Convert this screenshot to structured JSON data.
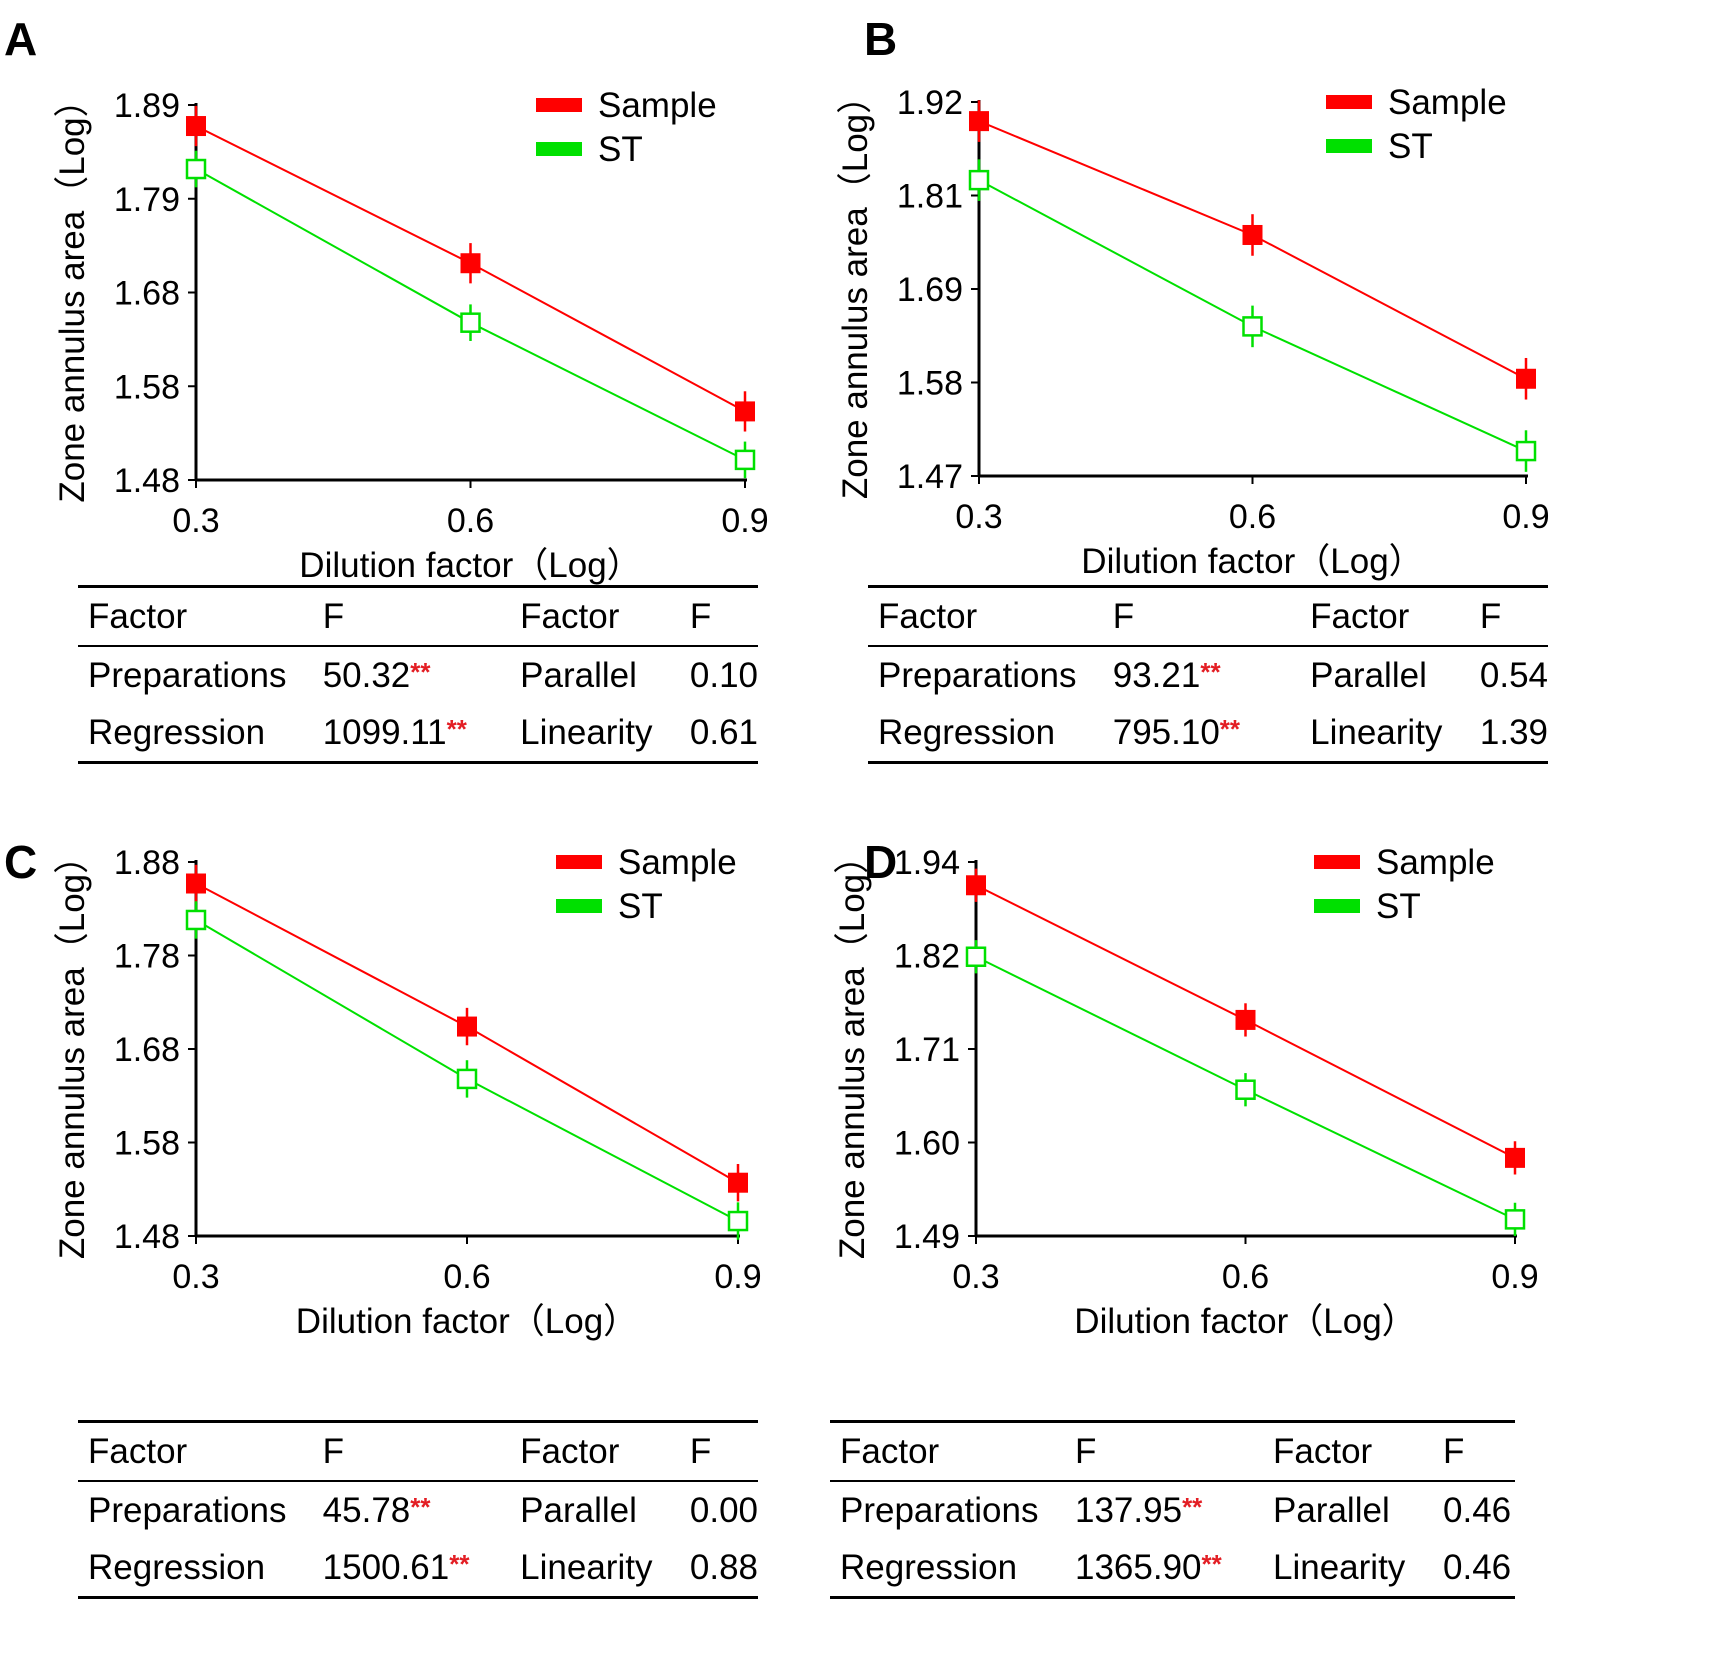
{
  "colors": {
    "sample": "#ff0000",
    "st": "#00e000",
    "sig": "#e31e24",
    "axis": "#000000"
  },
  "chart_data": [
    {
      "panel": "A",
      "type": "line",
      "xlabel": "Dilution factor（Log）",
      "ylabel": "Zone annulus area（Log）",
      "xticks": [
        "0.3",
        "0.6",
        "0.9"
      ],
      "yticks": [
        "1.89",
        "1.79",
        "1.68",
        "1.58",
        "1.48"
      ],
      "xlim": [
        0.3,
        0.9
      ],
      "ylim": [
        1.48,
        1.89
      ],
      "legend": "top-right",
      "x": [
        0.3,
        0.6,
        0.9
      ],
      "series": [
        {
          "name": "Sample",
          "values": [
            1.867,
            1.717,
            1.555
          ],
          "err": [
            0.022,
            0.022,
            0.022
          ]
        },
        {
          "name": "ST",
          "values": [
            1.82,
            1.652,
            1.502
          ],
          "err": [
            0.02,
            0.02,
            0.02
          ]
        }
      ],
      "stats": {
        "headers": [
          "Factor",
          "F",
          "Factor",
          "F"
        ],
        "rows": [
          {
            "f1": "Preparations",
            "v1": "50.32",
            "s1": "**",
            "f2": "Parallel",
            "v2": "0.10"
          },
          {
            "f1": "Regression",
            "v1": "1099.11",
            "s1": "**",
            "f2": "Linearity",
            "v2": "0.61"
          }
        ]
      }
    },
    {
      "panel": "B",
      "type": "line",
      "xlabel": "Dilution factor（Log）",
      "ylabel": "Zone annulus area（Log）",
      "xticks": [
        "0.3",
        "0.6",
        "0.9"
      ],
      "yticks": [
        "1.92",
        "1.81",
        "1.69",
        "1.58",
        "1.47"
      ],
      "xlim": [
        0.3,
        0.9
      ],
      "ylim": [
        1.47,
        1.92
      ],
      "legend": "top-right",
      "x": [
        0.3,
        0.6,
        0.9
      ],
      "series": [
        {
          "name": "Sample",
          "values": [
            1.897,
            1.76,
            1.587
          ],
          "err": [
            0.025,
            0.025,
            0.025
          ]
        },
        {
          "name": "ST",
          "values": [
            1.826,
            1.65,
            1.5
          ],
          "err": [
            0.025,
            0.025,
            0.025
          ]
        }
      ],
      "stats": {
        "headers": [
          "Factor",
          "F",
          "Factor",
          "F"
        ],
        "rows": [
          {
            "f1": "Preparations",
            "v1": "93.21",
            "s1": "**",
            "f2": "Parallel",
            "v2": "0.54"
          },
          {
            "f1": "Regression",
            "v1": "795.10",
            "s1": "**",
            "f2": "Linearity",
            "v2": "1.39"
          }
        ]
      }
    },
    {
      "panel": "C",
      "type": "line",
      "xlabel": "Dilution factor（Log）",
      "ylabel": "Zone annulus area（Log）",
      "xticks": [
        "0.3",
        "0.6",
        "0.9"
      ],
      "yticks": [
        "1.88",
        "1.78",
        "1.68",
        "1.58",
        "1.48"
      ],
      "xlim": [
        0.3,
        0.9
      ],
      "ylim": [
        1.48,
        1.88
      ],
      "legend": "top-right",
      "x": [
        0.3,
        0.6,
        0.9
      ],
      "series": [
        {
          "name": "Sample",
          "values": [
            1.857,
            1.704,
            1.537
          ],
          "err": [
            0.02,
            0.02,
            0.02
          ]
        },
        {
          "name": "ST",
          "values": [
            1.818,
            1.648,
            1.496
          ],
          "err": [
            0.02,
            0.02,
            0.02
          ]
        }
      ],
      "stats": {
        "headers": [
          "Factor",
          "F",
          "Factor",
          "F"
        ],
        "rows": [
          {
            "f1": "Preparations",
            "v1": "45.78",
            "s1": "**",
            "f2": "Parallel",
            "v2": "0.00"
          },
          {
            "f1": "Regression",
            "v1": "1500.61",
            "s1": "**",
            "f2": "Linearity",
            "v2": "0.88"
          }
        ]
      }
    },
    {
      "panel": "D",
      "type": "line",
      "xlabel": "Dilution factor（Log）",
      "ylabel": "Zone annulus area（Log）",
      "xticks": [
        "0.3",
        "0.6",
        "0.9"
      ],
      "yticks": [
        "1.94",
        "1.82",
        "1.71",
        "1.60",
        "1.49"
      ],
      "xlim": [
        0.3,
        0.9
      ],
      "ylim": [
        1.49,
        1.94
      ],
      "legend": "top-right",
      "x": [
        0.3,
        0.6,
        0.9
      ],
      "series": [
        {
          "name": "Sample",
          "values": [
            1.912,
            1.75,
            1.584
          ],
          "err": [
            0.02,
            0.02,
            0.02
          ]
        },
        {
          "name": "ST",
          "values": [
            1.826,
            1.666,
            1.51
          ],
          "err": [
            0.02,
            0.02,
            0.02
          ]
        }
      ],
      "stats": {
        "headers": [
          "Factor",
          "F",
          "Factor",
          "F"
        ],
        "rows": [
          {
            "f1": "Preparations",
            "v1": "137.95",
            "s1": "**",
            "f2": "Parallel",
            "v2": "0.46"
          },
          {
            "f1": "Regression",
            "v1": "1365.90",
            "s1": "**",
            "f2": "Linearity",
            "v2": "0.46"
          }
        ]
      }
    }
  ]
}
